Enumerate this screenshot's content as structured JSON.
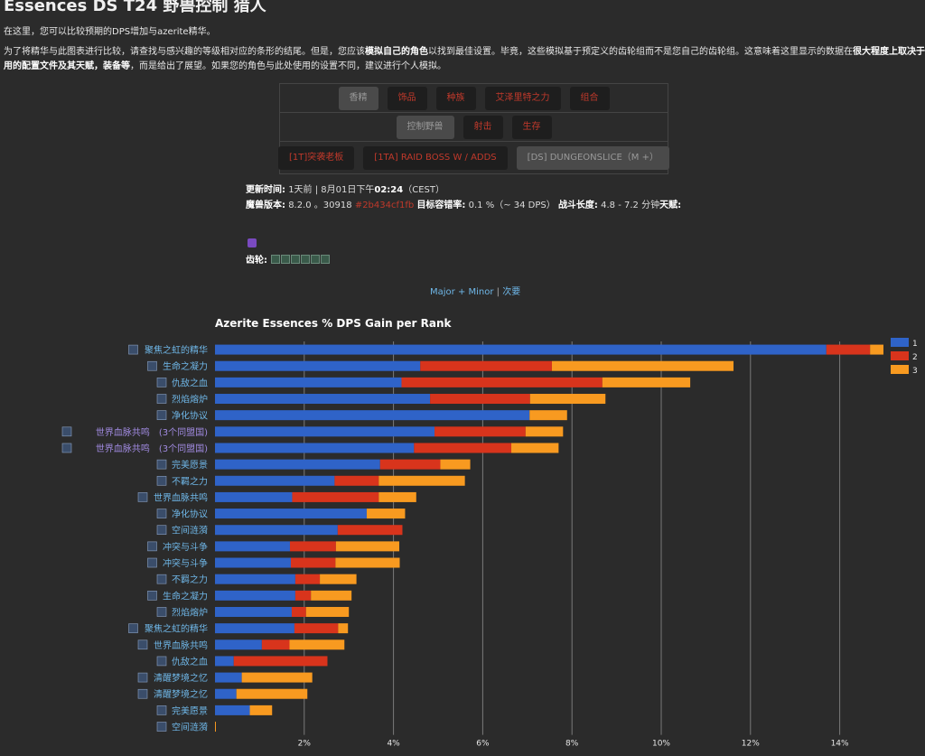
{
  "page": {
    "title": "Essences DS T24 野兽控制 猎人",
    "intro": "在这里，您可以比较预期的DPS增加与azerite精华。",
    "desc": {
      "p1": "为了将精华与此图表进行比较，请查找与感兴趣的等级相对应的条形的结尾。但是，您应该",
      "b1": "模拟自己的角色",
      "p2": "以找到最佳设置。毕竟，这些模拟基于预定义的齿轮组而不是您自己的齿轮组。这意味着这里显示的数据在",
      "b2": "很大程度上取决于使用的配置文件及其天赋，装备等",
      "p3": "，而是给出了展望。如果您的角色与此处使用的设置不同，建议进行个人模拟。"
    },
    "filters": {
      "row1": [
        "香精",
        "饰品",
        "种族",
        "艾泽里特之力",
        "组合"
      ],
      "row2": [
        "控制野兽",
        "射击",
        "生存"
      ],
      "row3": [
        "[1T]突袭老板",
        "[1TA] RAID BOSS W / ADDS",
        "[DS] DUNGEONSLICE（M +）"
      ]
    },
    "meta": {
      "updated_label": "更新时间:",
      "updated_value": "1天前 | 8月01日下午",
      "updated_time": "02:24",
      "updated_tz": "（CEST）",
      "version_label": "魔兽版本:",
      "version_value": "8.2.0 。30918",
      "hash": "#2b434cf1fb",
      "error_label": "目标容错率:",
      "error_value": "0.1 %（~ 34 DPS）",
      "fight_label": "战斗长度:",
      "fight_value": "4.8 -  7.2 分钟",
      "talents_label": "天赋:"
    },
    "traits_label": "齿轮:",
    "toggle": {
      "major": "Major + Minor",
      "sep": "|",
      "minor": "次要"
    }
  },
  "colors": {
    "r1": "#2f63c8",
    "r2": "#d8341c",
    "r3": "#f89a20",
    "label": "#6fb7e8",
    "label_alt": "#a08ae0",
    "grid": "#7a7a7a"
  },
  "chart_data": {
    "type": "bar",
    "orientation": "horizontal",
    "stacked": true,
    "title": "Azerite Essences % DPS Gain per Rank",
    "xlim": [
      0,
      15
    ],
    "xticks": [
      2,
      4,
      6,
      8,
      10,
      12,
      14
    ],
    "xtick_labels": [
      "2%",
      "4%",
      "6%",
      "8%",
      "10%",
      "12%",
      "14%"
    ],
    "grid": true,
    "legend_position": "top-right",
    "legend": [
      "1",
      "2",
      "3"
    ],
    "categories": [
      "聚焦之虹的精华",
      "生命之凝力",
      "仇敌之血",
      "烈焰熔炉",
      "净化协议",
      "世界血脉共鸣　(3个同盟国)",
      "世界血脉共鸣　(3个同盟国)",
      "完美愿景",
      "不羁之力",
      "世界血脉共鸣",
      "净化协议",
      "空间涟漪",
      "冲突与斗争",
      "冲突与斗争",
      "不羁之力",
      "生命之凝力",
      "烈焰熔炉",
      "聚焦之虹的精华",
      "世界血脉共鸣",
      "仇敌之血",
      "清醒梦境之忆",
      "清醒梦境之忆",
      "完美愿景",
      "空间涟漪"
    ],
    "series": [
      {
        "name": "1",
        "values": [
          13.7,
          4.6,
          4.18,
          4.82,
          7.05,
          4.92,
          4.46,
          3.7,
          2.68,
          1.73,
          3.4,
          2.75,
          1.68,
          1.7,
          1.8,
          1.8,
          1.72,
          1.78,
          1.05,
          0.42,
          0.6,
          0.48,
          0.78,
          0.0
        ]
      },
      {
        "name": "2",
        "values": [
          0.98,
          2.95,
          4.5,
          2.24,
          0.0,
          2.04,
          2.18,
          1.35,
          0.99,
          1.94,
          0.0,
          1.45,
          1.03,
          1.0,
          0.55,
          0.35,
          0.32,
          0.98,
          0.62,
          2.1,
          0.0,
          0.0,
          0.0,
          0.0
        ]
      },
      {
        "name": "3",
        "values": [
          0.3,
          4.07,
          1.97,
          1.69,
          0.84,
          0.84,
          1.06,
          0.67,
          1.93,
          0.84,
          0.86,
          0.0,
          1.42,
          1.44,
          0.82,
          0.91,
          0.96,
          0.22,
          1.23,
          0.0,
          1.58,
          1.59,
          0.5,
          0.02
        ]
      }
    ]
  }
}
